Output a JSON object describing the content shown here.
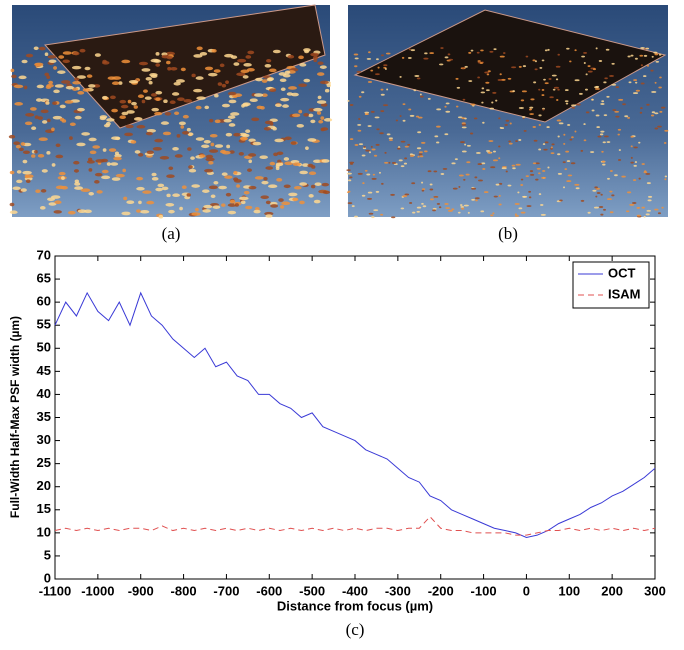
{
  "panels": [
    {
      "caption": "(a)"
    },
    {
      "caption": "(b)"
    }
  ],
  "chart_data": {
    "type": "line",
    "caption": "(c)",
    "x_label": "Distance from focus (µm)",
    "y_label": "Full-Width Half-Max PSF width (µm)",
    "x": [
      -1100,
      -1075,
      -1050,
      -1025,
      -1000,
      -975,
      -950,
      -925,
      -900,
      -875,
      -850,
      -825,
      -800,
      -775,
      -750,
      -725,
      -700,
      -675,
      -650,
      -625,
      -600,
      -575,
      -550,
      -525,
      -500,
      -475,
      -450,
      -425,
      -400,
      -375,
      -350,
      -325,
      -300,
      -275,
      -250,
      -225,
      -200,
      -175,
      -150,
      -125,
      -100,
      -75,
      -50,
      -25,
      0,
      25,
      50,
      75,
      100,
      125,
      150,
      175,
      200,
      225,
      250,
      275,
      300
    ],
    "series": [
      {
        "name": "OCT",
        "color": "#3a3ad6",
        "dash": false,
        "values": [
          55,
          60,
          57,
          62,
          58,
          56,
          60,
          55,
          62,
          57,
          55,
          52,
          50,
          48,
          50,
          46,
          47,
          44,
          43,
          40,
          40,
          38,
          37,
          35,
          36,
          33,
          32,
          31,
          30,
          28,
          27,
          26,
          24,
          22,
          21,
          18,
          17,
          15,
          14,
          13,
          12,
          11,
          10.5,
          10,
          9,
          9.5,
          10.5,
          12,
          13,
          14,
          15.5,
          16.5,
          18,
          19,
          20.5,
          22,
          24
        ]
      },
      {
        "name": "ISAM",
        "color": "#e05050",
        "dash": true,
        "values": [
          10.5,
          11,
          10.5,
          11,
          10.5,
          11,
          10.5,
          11,
          11,
          10.5,
          11.5,
          10.5,
          11,
          10.5,
          11,
          10.5,
          11,
          10.5,
          11,
          10.5,
          11,
          10.5,
          11,
          10.5,
          11,
          10.5,
          11,
          10.5,
          11,
          10.5,
          11,
          11,
          10.5,
          11,
          11,
          13.5,
          11,
          10.5,
          10.5,
          10,
          10,
          10,
          10,
          9.5,
          9.5,
          10,
          10.5,
          10.5,
          11,
          10.5,
          11,
          10.5,
          11,
          10.5,
          11,
          10.5,
          11
        ]
      }
    ],
    "xlim": [
      -1100,
      300
    ],
    "xticks": [
      -1100,
      -1000,
      -900,
      -800,
      -700,
      -600,
      -500,
      -400,
      -300,
      -200,
      -100,
      0,
      100,
      200,
      300
    ],
    "ylim": [
      0,
      70
    ],
    "yticks": [
      0,
      5,
      10,
      15,
      20,
      25,
      30,
      35,
      40,
      45,
      50,
      55,
      60,
      65,
      70
    ],
    "legend": "upper right"
  }
}
